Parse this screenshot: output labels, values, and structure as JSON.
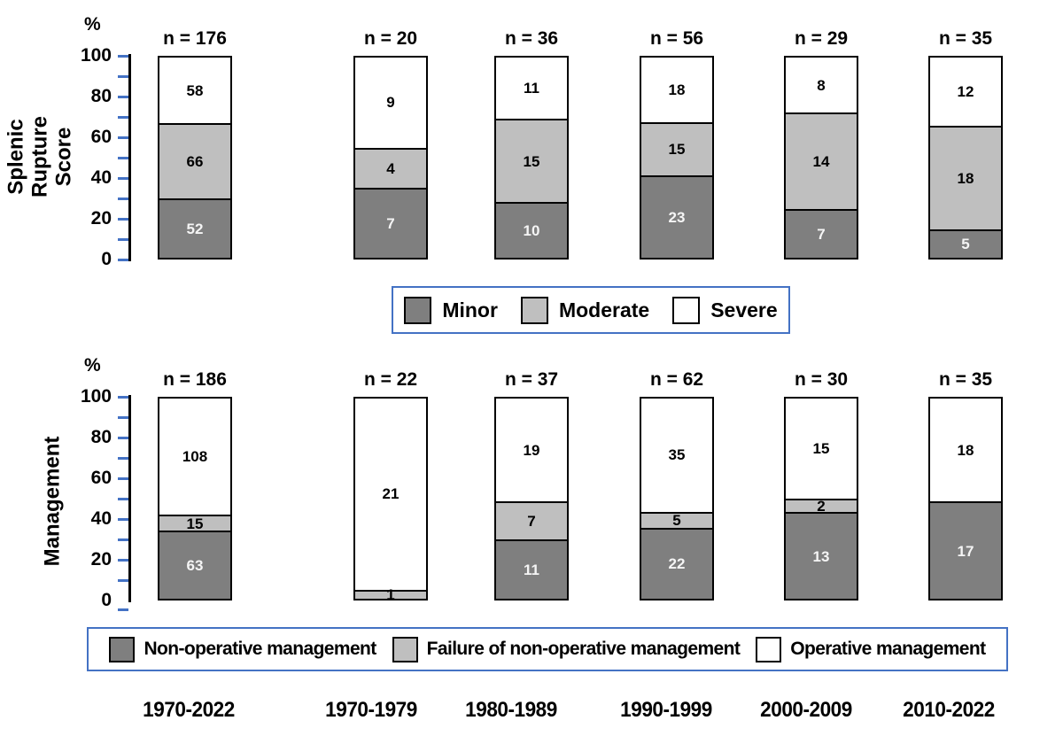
{
  "chart_data": [
    {
      "type": "bar",
      "stacked": true,
      "percent_normalized": true,
      "title": "",
      "ylabel": "Splenic Rupture Score",
      "ylabel_lines": [
        "Splenic Rupture",
        "Score"
      ],
      "y_unit": "%",
      "ylim": [
        0,
        100
      ],
      "yticks_labeled": [
        0,
        20,
        40,
        60,
        80,
        100
      ],
      "ytick_minor_step": 10,
      "grid": false,
      "legend_position": "below-center",
      "categories": [
        "1970-2022",
        "1970-1979",
        "1980-1989",
        "1990-1999",
        "2000-2009",
        "2010-2022"
      ],
      "n_labels": [
        "n = 176",
        "n = 20",
        "n = 36",
        "n = 56",
        "n = 29",
        "n = 35"
      ],
      "totals": [
        176,
        20,
        36,
        56,
        29,
        35
      ],
      "series": [
        {
          "name": "Minor",
          "color": "#7F7F7F",
          "label_color": "#F5F5F5",
          "values": [
            52,
            7,
            10,
            23,
            7,
            5
          ]
        },
        {
          "name": "Moderate",
          "color": "#BFBFBF",
          "label_color": "#000000",
          "values": [
            66,
            4,
            15,
            15,
            14,
            18
          ]
        },
        {
          "name": "Severe",
          "color": "#FFFFFF",
          "label_color": "#000000",
          "values": [
            58,
            9,
            11,
            18,
            8,
            12
          ]
        }
      ]
    },
    {
      "type": "bar",
      "stacked": true,
      "percent_normalized": true,
      "title": "",
      "ylabel": "Management",
      "ylabel_lines": [
        "Management"
      ],
      "y_unit": "%",
      "ylim": [
        0,
        100
      ],
      "yticks_labeled": [
        0,
        20,
        40,
        60,
        80,
        100
      ],
      "ytick_minor_step": 10,
      "grid": false,
      "legend_position": "below-center",
      "categories": [
        "1970-2022",
        "1970-1979",
        "1980-1989",
        "1990-1999",
        "2000-2009",
        "2010-2022"
      ],
      "n_labels": [
        "n = 186",
        "n = 22",
        "n = 37",
        "n = 62",
        "n = 30",
        "n = 35"
      ],
      "totals": [
        186,
        22,
        37,
        62,
        30,
        35
      ],
      "series": [
        {
          "name": "Non-operative management",
          "color": "#7F7F7F",
          "label_color": "#F5F5F5",
          "values": [
            63,
            0,
            11,
            22,
            13,
            17
          ]
        },
        {
          "name": "Failure of non-operative management",
          "color": "#BFBFBF",
          "label_color": "#000000",
          "values": [
            15,
            1,
            7,
            5,
            2,
            0
          ]
        },
        {
          "name": "Operative management",
          "color": "#FFFFFF",
          "label_color": "#000000",
          "values": [
            108,
            21,
            19,
            35,
            15,
            18
          ]
        }
      ]
    }
  ],
  "x_axis_labels": [
    "1970-2022",
    "1970-1979",
    "1980-1989",
    "1990-1999",
    "2000-2009",
    "2010-2022"
  ],
  "style_colors": {
    "tick_blue": "#4472C4",
    "legend_border_blue": "#4472C4",
    "axis_black": "#000000",
    "background": "#FFFFFF"
  }
}
